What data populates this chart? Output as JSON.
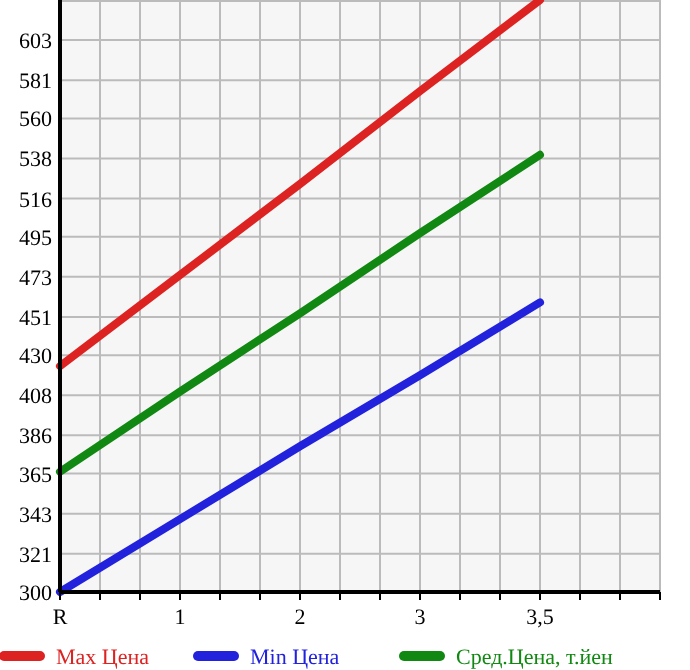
{
  "chart_data": {
    "type": "line",
    "categories": [
      "R",
      "1",
      "2",
      "3",
      "3,5"
    ],
    "ylim": [
      300,
      625
    ],
    "yticks": [
      300,
      321,
      343,
      365,
      386,
      408,
      430,
      451,
      473,
      495,
      516,
      538,
      560,
      581,
      603
    ],
    "grid": true,
    "legend": "bottom",
    "marker": "none",
    "line_style": "solid",
    "series": [
      {
        "name": "Max Цена",
        "color": "#dd2222",
        "values": [
          424,
          474,
          524,
          575,
          625
        ]
      },
      {
        "name": "Min Цена",
        "color": "#2222dd",
        "values": [
          300,
          340,
          380,
          419,
          459
        ]
      },
      {
        "name": "Сред.Цена, т.йен",
        "color": "#118811",
        "values": [
          366,
          410,
          453,
          497,
          540
        ]
      }
    ]
  }
}
